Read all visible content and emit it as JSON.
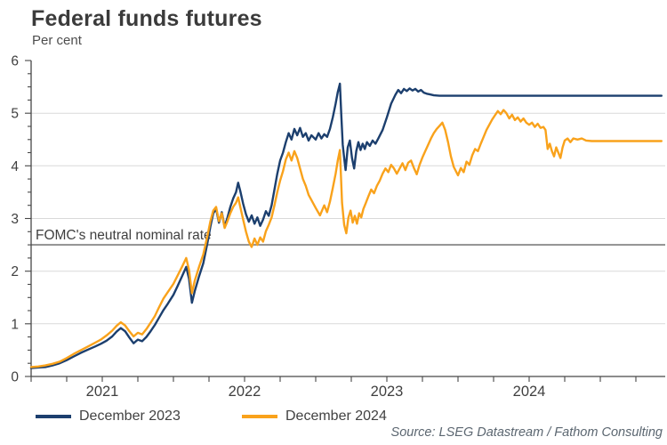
{
  "header": {
    "title": "Federal funds futures",
    "subtitle": "Per cent"
  },
  "source": {
    "text": "Source: LSEG Datastream / Fathom Consulting"
  },
  "chart_data": {
    "type": "line",
    "title": "Federal funds futures",
    "ylabel": "Per cent",
    "legend_position": "bottom-left",
    "grid": "horizontal-only",
    "y_axis": {
      "min": 0,
      "max": 6,
      "tick_step": 1,
      "minor_tick_step": 0.25,
      "gridlines": [
        1,
        2,
        3,
        4,
        5
      ],
      "tick_labels": [
        "0",
        "1",
        "2",
        "3",
        "4",
        "5",
        "6"
      ]
    },
    "x_axis": {
      "start_year": 2021,
      "end": 2025.43,
      "labels": [
        "2021",
        "2022",
        "2023",
        "2024"
      ],
      "tick_interval_years": 0.25
    },
    "reference_line": {
      "label": "FOMC's neutral nominal rate",
      "value": 2.5,
      "color": "#7d7d7d"
    },
    "colors": {
      "grid": "#d9d9d9",
      "axis": "#474747",
      "tick_label": "#3f3f3f",
      "annotation": "#3f3f3f"
    },
    "series": [
      {
        "name": "December 2023",
        "color": "#1c3f6e",
        "points": [
          [
            2021.0,
            0.16
          ],
          [
            2021.05,
            0.17
          ],
          [
            2021.1,
            0.18
          ],
          [
            2021.15,
            0.21
          ],
          [
            2021.2,
            0.25
          ],
          [
            2021.25,
            0.31
          ],
          [
            2021.3,
            0.38
          ],
          [
            2021.35,
            0.45
          ],
          [
            2021.4,
            0.51
          ],
          [
            2021.45,
            0.57
          ],
          [
            2021.49,
            0.62
          ],
          [
            2021.53,
            0.68
          ],
          [
            2021.57,
            0.76
          ],
          [
            2021.6,
            0.85
          ],
          [
            2021.63,
            0.92
          ],
          [
            2021.66,
            0.86
          ],
          [
            2021.69,
            0.74
          ],
          [
            2021.72,
            0.63
          ],
          [
            2021.75,
            0.7
          ],
          [
            2021.78,
            0.67
          ],
          [
            2021.81,
            0.75
          ],
          [
            2021.84,
            0.86
          ],
          [
            2021.87,
            0.98
          ],
          [
            2021.9,
            1.12
          ],
          [
            2021.93,
            1.26
          ],
          [
            2021.96,
            1.38
          ],
          [
            2022.0,
            1.55
          ],
          [
            2022.03,
            1.72
          ],
          [
            2022.06,
            1.9
          ],
          [
            2022.09,
            2.08
          ],
          [
            2022.11,
            1.85
          ],
          [
            2022.13,
            1.4
          ],
          [
            2022.15,
            1.62
          ],
          [
            2022.18,
            1.9
          ],
          [
            2022.21,
            2.15
          ],
          [
            2022.24,
            2.55
          ],
          [
            2022.26,
            2.85
          ],
          [
            2022.28,
            3.1
          ],
          [
            2022.3,
            3.18
          ],
          [
            2022.32,
            2.92
          ],
          [
            2022.34,
            3.12
          ],
          [
            2022.36,
            2.84
          ],
          [
            2022.38,
            3.02
          ],
          [
            2022.4,
            3.22
          ],
          [
            2022.42,
            3.38
          ],
          [
            2022.44,
            3.5
          ],
          [
            2022.455,
            3.68
          ],
          [
            2022.47,
            3.52
          ],
          [
            2022.49,
            3.28
          ],
          [
            2022.51,
            3.08
          ],
          [
            2022.53,
            2.94
          ],
          [
            2022.55,
            3.06
          ],
          [
            2022.57,
            2.9
          ],
          [
            2022.59,
            3.02
          ],
          [
            2022.61,
            2.86
          ],
          [
            2022.63,
            2.98
          ],
          [
            2022.65,
            3.14
          ],
          [
            2022.67,
            3.05
          ],
          [
            2022.69,
            3.25
          ],
          [
            2022.71,
            3.55
          ],
          [
            2022.73,
            3.85
          ],
          [
            2022.75,
            4.1
          ],
          [
            2022.77,
            4.25
          ],
          [
            2022.79,
            4.45
          ],
          [
            2022.81,
            4.62
          ],
          [
            2022.83,
            4.5
          ],
          [
            2022.85,
            4.7
          ],
          [
            2022.87,
            4.58
          ],
          [
            2022.89,
            4.72
          ],
          [
            2022.91,
            4.55
          ],
          [
            2022.93,
            4.62
          ],
          [
            2022.95,
            4.48
          ],
          [
            2022.97,
            4.58
          ],
          [
            2023.0,
            4.5
          ],
          [
            2023.02,
            4.62
          ],
          [
            2023.04,
            4.52
          ],
          [
            2023.06,
            4.6
          ],
          [
            2023.08,
            4.55
          ],
          [
            2023.1,
            4.7
          ],
          [
            2023.12,
            4.92
          ],
          [
            2023.14,
            5.18
          ],
          [
            2023.155,
            5.4
          ],
          [
            2023.17,
            5.56
          ],
          [
            2023.18,
            4.95
          ],
          [
            2023.19,
            4.4
          ],
          [
            2023.2,
            4.15
          ],
          [
            2023.21,
            3.92
          ],
          [
            2023.225,
            4.35
          ],
          [
            2023.24,
            4.48
          ],
          [
            2023.255,
            4.15
          ],
          [
            2023.27,
            3.95
          ],
          [
            2023.285,
            4.28
          ],
          [
            2023.3,
            4.45
          ],
          [
            2023.315,
            4.3
          ],
          [
            2023.33,
            4.42
          ],
          [
            2023.345,
            4.32
          ],
          [
            2023.36,
            4.45
          ],
          [
            2023.38,
            4.38
          ],
          [
            2023.4,
            4.48
          ],
          [
            2023.42,
            4.42
          ],
          [
            2023.44,
            4.52
          ],
          [
            2023.47,
            4.68
          ],
          [
            2023.5,
            4.92
          ],
          [
            2023.53,
            5.18
          ],
          [
            2023.56,
            5.35
          ],
          [
            2023.58,
            5.44
          ],
          [
            2023.6,
            5.38
          ],
          [
            2023.62,
            5.46
          ],
          [
            2023.64,
            5.42
          ],
          [
            2023.66,
            5.47
          ],
          [
            2023.68,
            5.43
          ],
          [
            2023.7,
            5.46
          ],
          [
            2023.72,
            5.41
          ],
          [
            2023.74,
            5.44
          ],
          [
            2023.76,
            5.39
          ],
          [
            2023.78,
            5.37
          ],
          [
            2023.8,
            5.36
          ],
          [
            2023.83,
            5.34
          ],
          [
            2023.87,
            5.33
          ],
          [
            2025.43,
            5.33
          ]
        ]
      },
      {
        "name": "December 2024",
        "color": "#f9a21b",
        "points": [
          [
            2021.0,
            0.18
          ],
          [
            2021.05,
            0.19
          ],
          [
            2021.1,
            0.21
          ],
          [
            2021.15,
            0.24
          ],
          [
            2021.2,
            0.28
          ],
          [
            2021.25,
            0.35
          ],
          [
            2021.3,
            0.43
          ],
          [
            2021.35,
            0.5
          ],
          [
            2021.4,
            0.57
          ],
          [
            2021.45,
            0.64
          ],
          [
            2021.49,
            0.7
          ],
          [
            2021.53,
            0.78
          ],
          [
            2021.57,
            0.87
          ],
          [
            2021.6,
            0.96
          ],
          [
            2021.63,
            1.03
          ],
          [
            2021.66,
            0.97
          ],
          [
            2021.69,
            0.86
          ],
          [
            2021.72,
            0.76
          ],
          [
            2021.75,
            0.83
          ],
          [
            2021.78,
            0.8
          ],
          [
            2021.81,
            0.9
          ],
          [
            2021.84,
            1.02
          ],
          [
            2021.87,
            1.15
          ],
          [
            2021.9,
            1.32
          ],
          [
            2021.93,
            1.48
          ],
          [
            2021.96,
            1.6
          ],
          [
            2022.0,
            1.76
          ],
          [
            2022.03,
            1.92
          ],
          [
            2022.06,
            2.08
          ],
          [
            2022.09,
            2.25
          ],
          [
            2022.11,
            2.02
          ],
          [
            2022.13,
            1.58
          ],
          [
            2022.15,
            1.82
          ],
          [
            2022.18,
            2.08
          ],
          [
            2022.21,
            2.32
          ],
          [
            2022.24,
            2.68
          ],
          [
            2022.26,
            2.95
          ],
          [
            2022.28,
            3.15
          ],
          [
            2022.3,
            3.22
          ],
          [
            2022.32,
            2.95
          ],
          [
            2022.34,
            3.1
          ],
          [
            2022.36,
            2.82
          ],
          [
            2022.38,
            2.95
          ],
          [
            2022.4,
            3.1
          ],
          [
            2022.42,
            3.22
          ],
          [
            2022.44,
            3.3
          ],
          [
            2022.455,
            3.4
          ],
          [
            2022.47,
            3.22
          ],
          [
            2022.49,
            2.98
          ],
          [
            2022.51,
            2.75
          ],
          [
            2022.53,
            2.56
          ],
          [
            2022.55,
            2.46
          ],
          [
            2022.57,
            2.62
          ],
          [
            2022.59,
            2.5
          ],
          [
            2022.61,
            2.64
          ],
          [
            2022.63,
            2.56
          ],
          [
            2022.65,
            2.76
          ],
          [
            2022.67,
            2.88
          ],
          [
            2022.69,
            3.02
          ],
          [
            2022.71,
            3.25
          ],
          [
            2022.73,
            3.5
          ],
          [
            2022.75,
            3.72
          ],
          [
            2022.77,
            3.9
          ],
          [
            2022.79,
            4.12
          ],
          [
            2022.81,
            4.25
          ],
          [
            2022.83,
            4.1
          ],
          [
            2022.85,
            4.28
          ],
          [
            2022.87,
            4.15
          ],
          [
            2022.89,
            3.95
          ],
          [
            2022.91,
            3.75
          ],
          [
            2022.93,
            3.62
          ],
          [
            2022.95,
            3.45
          ],
          [
            2022.97,
            3.35
          ],
          [
            2023.0,
            3.2
          ],
          [
            2023.03,
            3.06
          ],
          [
            2023.06,
            3.25
          ],
          [
            2023.08,
            3.12
          ],
          [
            2023.1,
            3.32
          ],
          [
            2023.12,
            3.58
          ],
          [
            2023.14,
            3.85
          ],
          [
            2023.155,
            4.1
          ],
          [
            2023.17,
            4.3
          ],
          [
            2023.185,
            3.3
          ],
          [
            2023.2,
            2.88
          ],
          [
            2023.215,
            2.72
          ],
          [
            2023.23,
            3.02
          ],
          [
            2023.245,
            3.15
          ],
          [
            2023.26,
            2.92
          ],
          [
            2023.275,
            3.05
          ],
          [
            2023.29,
            2.9
          ],
          [
            2023.305,
            3.1
          ],
          [
            2023.32,
            3.02
          ],
          [
            2023.335,
            3.18
          ],
          [
            2023.35,
            3.28
          ],
          [
            2023.37,
            3.42
          ],
          [
            2023.39,
            3.55
          ],
          [
            2023.41,
            3.48
          ],
          [
            2023.43,
            3.62
          ],
          [
            2023.45,
            3.72
          ],
          [
            2023.47,
            3.85
          ],
          [
            2023.49,
            3.95
          ],
          [
            2023.51,
            3.88
          ],
          [
            2023.53,
            4.02
          ],
          [
            2023.55,
            3.95
          ],
          [
            2023.57,
            3.85
          ],
          [
            2023.59,
            3.95
          ],
          [
            2023.61,
            4.05
          ],
          [
            2023.63,
            3.92
          ],
          [
            2023.65,
            4.06
          ],
          [
            2023.67,
            4.1
          ],
          [
            2023.69,
            3.96
          ],
          [
            2023.71,
            3.84
          ],
          [
            2023.73,
            4.02
          ],
          [
            2023.75,
            4.16
          ],
          [
            2023.77,
            4.28
          ],
          [
            2023.79,
            4.4
          ],
          [
            2023.81,
            4.52
          ],
          [
            2023.83,
            4.62
          ],
          [
            2023.85,
            4.7
          ],
          [
            2023.87,
            4.76
          ],
          [
            2023.89,
            4.82
          ],
          [
            2023.91,
            4.68
          ],
          [
            2023.93,
            4.45
          ],
          [
            2023.95,
            4.18
          ],
          [
            2023.97,
            3.98
          ],
          [
            2024.0,
            3.82
          ],
          [
            2024.02,
            3.96
          ],
          [
            2024.04,
            3.88
          ],
          [
            2024.06,
            4.08
          ],
          [
            2024.08,
            4.02
          ],
          [
            2024.1,
            4.2
          ],
          [
            2024.12,
            4.32
          ],
          [
            2024.14,
            4.28
          ],
          [
            2024.16,
            4.42
          ],
          [
            2024.18,
            4.55
          ],
          [
            2024.2,
            4.68
          ],
          [
            2024.22,
            4.78
          ],
          [
            2024.24,
            4.88
          ],
          [
            2024.26,
            4.96
          ],
          [
            2024.28,
            5.04
          ],
          [
            2024.3,
            4.98
          ],
          [
            2024.32,
            5.06
          ],
          [
            2024.34,
            5.0
          ],
          [
            2024.36,
            4.9
          ],
          [
            2024.38,
            4.97
          ],
          [
            2024.4,
            4.87
          ],
          [
            2024.42,
            4.92
          ],
          [
            2024.44,
            4.84
          ],
          [
            2024.46,
            4.9
          ],
          [
            2024.48,
            4.82
          ],
          [
            2024.5,
            4.78
          ],
          [
            2024.52,
            4.82
          ],
          [
            2024.54,
            4.74
          ],
          [
            2024.56,
            4.8
          ],
          [
            2024.58,
            4.72
          ],
          [
            2024.6,
            4.74
          ],
          [
            2024.615,
            4.68
          ],
          [
            2024.63,
            4.32
          ],
          [
            2024.645,
            4.42
          ],
          [
            2024.66,
            4.28
          ],
          [
            2024.675,
            4.18
          ],
          [
            2024.69,
            4.35
          ],
          [
            2024.705,
            4.25
          ],
          [
            2024.72,
            4.15
          ],
          [
            2024.735,
            4.35
          ],
          [
            2024.75,
            4.48
          ],
          [
            2024.77,
            4.52
          ],
          [
            2024.79,
            4.45
          ],
          [
            2024.81,
            4.52
          ],
          [
            2024.84,
            4.5
          ],
          [
            2024.87,
            4.52
          ],
          [
            2024.9,
            4.48
          ],
          [
            2024.94,
            4.47
          ],
          [
            2025.43,
            4.47
          ]
        ]
      }
    ]
  }
}
